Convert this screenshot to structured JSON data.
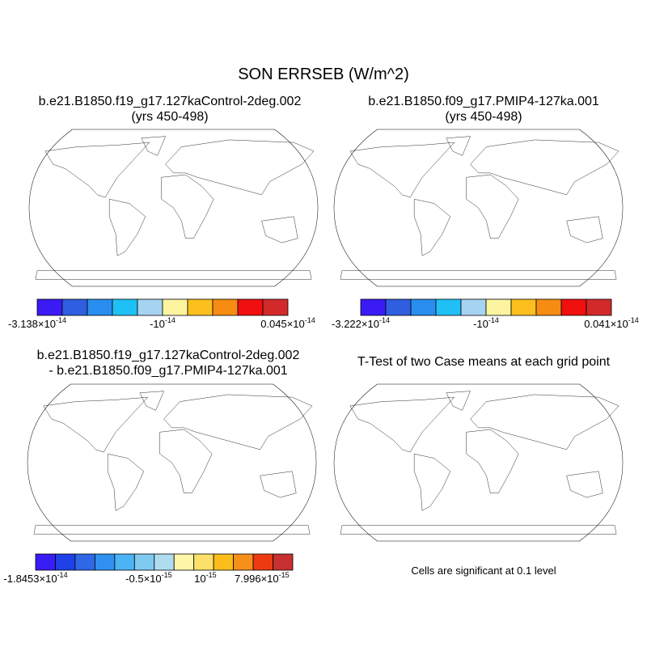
{
  "title": "SON ERRSEB (W/m^2)",
  "panels": [
    {
      "title_lines": [
        "b.e21.B1850.f19_g17.127kaControl-2deg.002",
        "(yrs 450-498)"
      ],
      "colorbar": {
        "colors": [
          "#3b1bf5",
          "#2f5fe0",
          "#2a8df0",
          "#1ec0f5",
          "#a6d4f0",
          "#fdf4a0",
          "#fbbf1e",
          "#f78c12",
          "#f01010",
          "#d22a2a"
        ],
        "labels": [
          {
            "base": "-3.138×10",
            "exponent": "-14"
          },
          {
            "base": "-10",
            "exponent": "-14"
          },
          {
            "base": "0.045×10",
            "exponent": "-14"
          }
        ]
      }
    },
    {
      "title_lines": [
        "b.e21.B1850.f09_g17.PMIP4-127ka.001",
        "(yrs 450-498)"
      ],
      "colorbar": {
        "colors": [
          "#3b1bf5",
          "#2f5fe0",
          "#2a8df0",
          "#1ec0f5",
          "#a6d4f0",
          "#fdf4a0",
          "#fbbf1e",
          "#f78c12",
          "#f01010",
          "#d22a2a"
        ],
        "labels": [
          {
            "base": "-3.222×10",
            "exponent": "-14"
          },
          {
            "base": "-10",
            "exponent": "-14"
          },
          {
            "base": "0.041×10",
            "exponent": "-14"
          }
        ]
      }
    },
    {
      "title_lines": [
        "b.e21.B1850.f19_g17.127kaControl-2deg.002",
        "- b.e21.B1850.f09_g17.PMIP4-127ka.001"
      ],
      "colorbar": {
        "colors": [
          "#3a1cf5",
          "#2040e8",
          "#2f67e6",
          "#3090f0",
          "#4cb3f4",
          "#7fcbf0",
          "#b0dcf0",
          "#fef6a8",
          "#fde06a",
          "#fbbd1a",
          "#f5901b",
          "#ee3a11",
          "#c63030"
        ],
        "labels": [
          {
            "base": "-1.8453×10",
            "exponent": "-14"
          },
          {
            "base": "-0.5×10",
            "exponent": "-15"
          },
          {
            "base": "10",
            "exponent": "-15"
          },
          {
            "base": "7.996×10",
            "exponent": "-15"
          }
        ]
      }
    },
    {
      "title_lines": [
        "T-Test of two Case means at each grid point"
      ],
      "note": "Cells are significant at 0.1 level"
    }
  ]
}
